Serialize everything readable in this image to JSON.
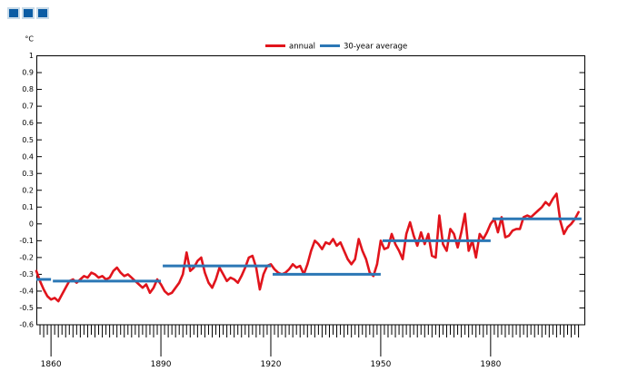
{
  "toolbar": {
    "button_fill": "#0b5ca4",
    "button_border": "#c9dbe9",
    "buttons": [
      {
        "id": "option-button-1"
      },
      {
        "id": "option-button-2"
      },
      {
        "id": "option-button-3"
      }
    ]
  },
  "chart_data": {
    "type": "line",
    "title": "",
    "y_axis": {
      "unit": "°C",
      "min": -0.6,
      "max": 1.0,
      "step": 0.1,
      "labels_top_to_bottom": [
        "1",
        "0.9",
        "0.8",
        "0.7",
        "0.6",
        "0.5",
        "0.4",
        "0.3",
        "0.2",
        "0.1",
        "0",
        "-0.1",
        "-0.2",
        "-0.3",
        "-0.4",
        "-0.5",
        "-0.6"
      ],
      "grid": false
    },
    "x_axis": {
      "start_year": 1856,
      "end_year": 2004,
      "minor_tick_step_years": 1,
      "major_tick_years": [
        1860,
        1890,
        1920,
        1950,
        1980
      ],
      "labels": [
        "1860",
        "1890",
        "1920",
        "1950",
        "1980"
      ]
    },
    "legend": {
      "position": "above-plot",
      "entries": [
        {
          "label": "annual",
          "color": "#e1141c"
        },
        {
          "label": "30-year average",
          "color": "#2b77b5"
        }
      ]
    },
    "series": [
      {
        "name": "annual temperature anomaly",
        "color": "#e1141c",
        "start_year": 1856,
        "values": [
          -0.28,
          -0.34,
          -0.39,
          -0.43,
          -0.45,
          -0.44,
          -0.46,
          -0.42,
          -0.38,
          -0.34,
          -0.33,
          -0.35,
          -0.33,
          -0.31,
          -0.32,
          -0.29,
          -0.3,
          -0.32,
          -0.31,
          -0.33,
          -0.32,
          -0.28,
          -0.26,
          -0.29,
          -0.31,
          -0.3,
          -0.32,
          -0.34,
          -0.36,
          -0.38,
          -0.36,
          -0.41,
          -0.38,
          -0.33,
          -0.36,
          -0.4,
          -0.42,
          -0.41,
          -0.38,
          -0.35,
          -0.3,
          -0.17,
          -0.28,
          -0.26,
          -0.22,
          -0.2,
          -0.29,
          -0.35,
          -0.38,
          -0.33,
          -0.26,
          -0.3,
          -0.34,
          -0.32,
          -0.33,
          -0.35,
          -0.31,
          -0.26,
          -0.2,
          -0.19,
          -0.26,
          -0.39,
          -0.3,
          -0.25,
          -0.24,
          -0.27,
          -0.29,
          -0.3,
          -0.29,
          -0.27,
          -0.24,
          -0.26,
          -0.25,
          -0.3,
          -0.24,
          -0.16,
          -0.1,
          -0.12,
          -0.15,
          -0.11,
          -0.12,
          -0.09,
          -0.13,
          -0.11,
          -0.16,
          -0.21,
          -0.24,
          -0.21,
          -0.09,
          -0.16,
          -0.21,
          -0.29,
          -0.31,
          -0.24,
          -0.1,
          -0.15,
          -0.14,
          -0.06,
          -0.12,
          -0.16,
          -0.21,
          -0.06,
          0.01,
          -0.07,
          -0.13,
          -0.05,
          -0.12,
          -0.06,
          -0.19,
          -0.2,
          0.05,
          -0.12,
          -0.16,
          -0.03,
          -0.06,
          -0.14,
          -0.05,
          0.06,
          -0.16,
          -0.1,
          -0.2,
          -0.06,
          -0.09,
          -0.05,
          0.0,
          0.03,
          -0.05,
          0.04,
          -0.08,
          -0.07,
          -0.04,
          -0.03,
          -0.03,
          0.04,
          0.05,
          0.04,
          0.06,
          0.08,
          0.1,
          0.13,
          0.11,
          0.15,
          0.18,
          0.02,
          -0.06,
          -0.02,
          0.0,
          0.03,
          0.07
        ]
      },
      {
        "name": "30-year averages",
        "color": "#2b77b5",
        "segments": [
          {
            "start_year": 1856,
            "end_year": 1860,
            "value": -0.33
          },
          {
            "start_year": 1861,
            "end_year": 1890,
            "value": -0.34
          },
          {
            "start_year": 1891,
            "end_year": 1920,
            "value": -0.25
          },
          {
            "start_year": 1921,
            "end_year": 1950,
            "value": -0.3
          },
          {
            "start_year": 1951,
            "end_year": 1980,
            "value": -0.1
          },
          {
            "start_year": 1981,
            "end_year": 2004.8,
            "value": 0.03
          }
        ]
      }
    ],
    "colors": {
      "axis": "#000000",
      "annual_line": "#e1141c",
      "average_line": "#2b77b5"
    }
  }
}
